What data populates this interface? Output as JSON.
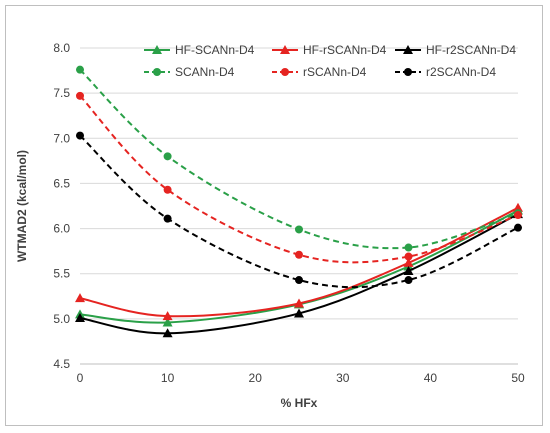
{
  "chart_data": {
    "type": "line",
    "xlabel": "% HFx",
    "ylabel": "WTMAD2 (kcal/mol)",
    "xlim": [
      0,
      50
    ],
    "ylim": [
      4.5,
      8.0
    ],
    "x_ticks": [
      0,
      10,
      20,
      30,
      40,
      50
    ],
    "y_ticks": [
      4.5,
      5.0,
      5.5,
      6.0,
      6.5,
      7.0,
      7.5,
      8.0
    ],
    "grid": "horizontal",
    "legend_position": "top-right",
    "series": [
      {
        "name": "HF-SCANn-D4",
        "color": "#2aa048",
        "style": "solid",
        "marker": "triangle",
        "x": [
          0,
          10,
          25,
          37.5,
          50
        ],
        "y": [
          5.05,
          4.96,
          5.16,
          5.58,
          6.2
        ]
      },
      {
        "name": "HF-rSCANn-D4",
        "color": "#e52421",
        "style": "solid",
        "marker": "triangle",
        "x": [
          0,
          10,
          25,
          37.5,
          50
        ],
        "y": [
          5.23,
          5.03,
          5.17,
          5.62,
          6.23
        ]
      },
      {
        "name": "HF-r2SCANn-D4",
        "color": "#000000",
        "style": "solid",
        "marker": "triangle",
        "x": [
          0,
          10,
          25,
          37.5,
          50
        ],
        "y": [
          5.01,
          4.84,
          5.06,
          5.53,
          6.16
        ]
      },
      {
        "name": "SCANn-D4",
        "color": "#2aa048",
        "style": "dashed",
        "marker": "circle",
        "x": [
          0,
          10,
          25,
          37.5,
          50
        ],
        "y": [
          7.76,
          6.8,
          5.99,
          5.79,
          6.17
        ]
      },
      {
        "name": "rSCANn-D4",
        "color": "#e52421",
        "style": "dashed",
        "marker": "circle",
        "x": [
          0,
          10,
          25,
          37.5,
          50
        ],
        "y": [
          7.47,
          6.43,
          5.71,
          5.69,
          6.15
        ]
      },
      {
        "name": "r2SCANn-D4",
        "color": "#000000",
        "style": "dashed",
        "marker": "circle",
        "x": [
          0,
          10,
          25,
          37.5,
          50
        ],
        "y": [
          7.03,
          6.11,
          5.43,
          5.43,
          6.01
        ]
      }
    ]
  }
}
